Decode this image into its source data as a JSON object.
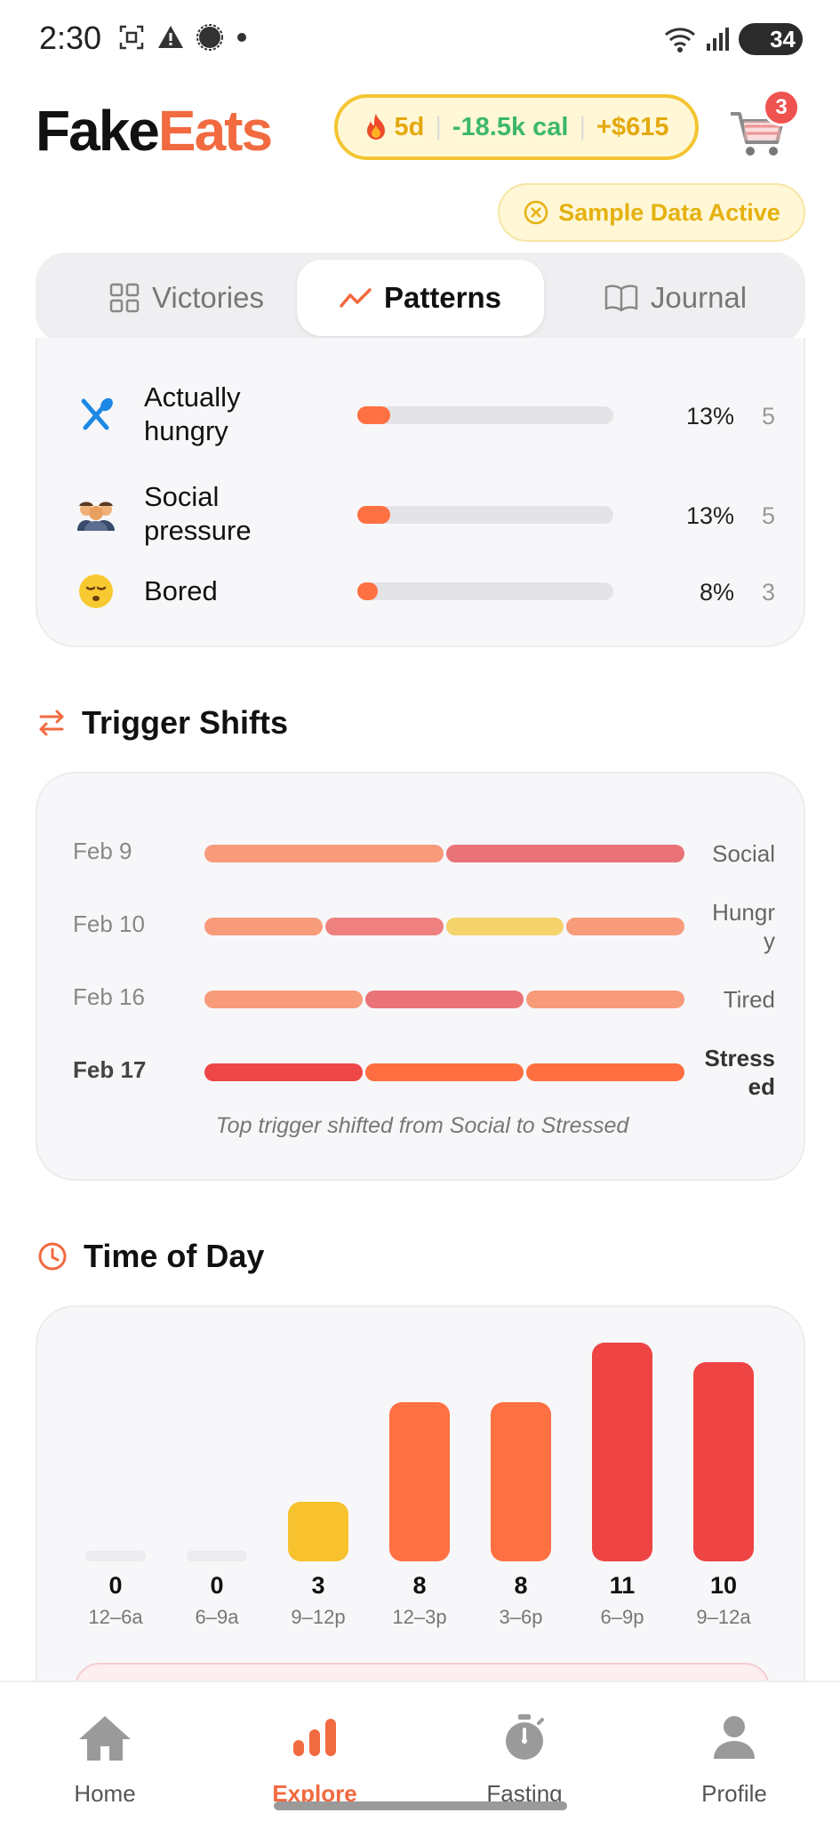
{
  "status_bar": {
    "time": "2:30",
    "battery": "34"
  },
  "header": {
    "brand_part1": "Fake",
    "brand_part2": "Eats",
    "streak": "5d",
    "calories": "-18.5k cal",
    "savings": "+$615",
    "cart_count": "3",
    "sample_data_label": "Sample Data Active"
  },
  "tabs": [
    {
      "label": "Victories",
      "active": false
    },
    {
      "label": "Patterns",
      "active": true
    },
    {
      "label": "Journal",
      "active": false
    }
  ],
  "triggers": [
    {
      "label": "Actually hungry",
      "percent": "13%",
      "value": 13,
      "count": "5",
      "icon": "fork-knife-icon"
    },
    {
      "label": "Social pressure",
      "percent": "13%",
      "value": 13,
      "count": "5",
      "icon": "people-emoji"
    },
    {
      "label": "Bored",
      "percent": "8%",
      "value": 8,
      "count": "3",
      "icon": "bored-face-emoji"
    }
  ],
  "trigger_shifts": {
    "title": "Trigger Shifts",
    "rows": [
      {
        "date": "Feb 9",
        "tag": "Social",
        "segments": [
          "#f79b7a",
          "#ea7378"
        ]
      },
      {
        "date": "Feb 10",
        "tag": "Hungry",
        "segments": [
          "#f79b7a",
          "#ee8180",
          "#f4d36b",
          "#f79b7a"
        ]
      },
      {
        "date": "Feb 16",
        "tag": "Tired",
        "segments": [
          "#f79b7a",
          "#ea7378",
          "#f79b7a"
        ]
      },
      {
        "date": "Feb 17",
        "tag": "Stressed",
        "segments": [
          "#ef4647",
          "#ff6e40",
          "#ff6e40"
        ]
      }
    ],
    "caption": "Top trigger shifted from Social to Stressed"
  },
  "time_of_day": {
    "title": "Time of Day",
    "colors": {
      "zero": "#ececef",
      "low": "#f7c22d",
      "mid": "#ff7043",
      "high": "#ef4444"
    }
  },
  "chart_data": {
    "type": "bar",
    "title": "Time of Day",
    "categories": [
      "12–6a",
      "6–9a",
      "9–12p",
      "12–3p",
      "3–6p",
      "6–9p",
      "9–12a"
    ],
    "values": [
      0,
      0,
      3,
      8,
      8,
      11,
      10
    ],
    "value_labels": [
      "0",
      "0",
      "3",
      "8",
      "8",
      "11",
      "10"
    ],
    "xlabel": "",
    "ylabel": "",
    "ylim": [
      0,
      11
    ]
  },
  "bottom_nav": [
    {
      "label": "Home",
      "active": false
    },
    {
      "label": "Explore",
      "active": true
    },
    {
      "label": "Fasting",
      "active": false
    },
    {
      "label": "Profile",
      "active": false
    }
  ]
}
